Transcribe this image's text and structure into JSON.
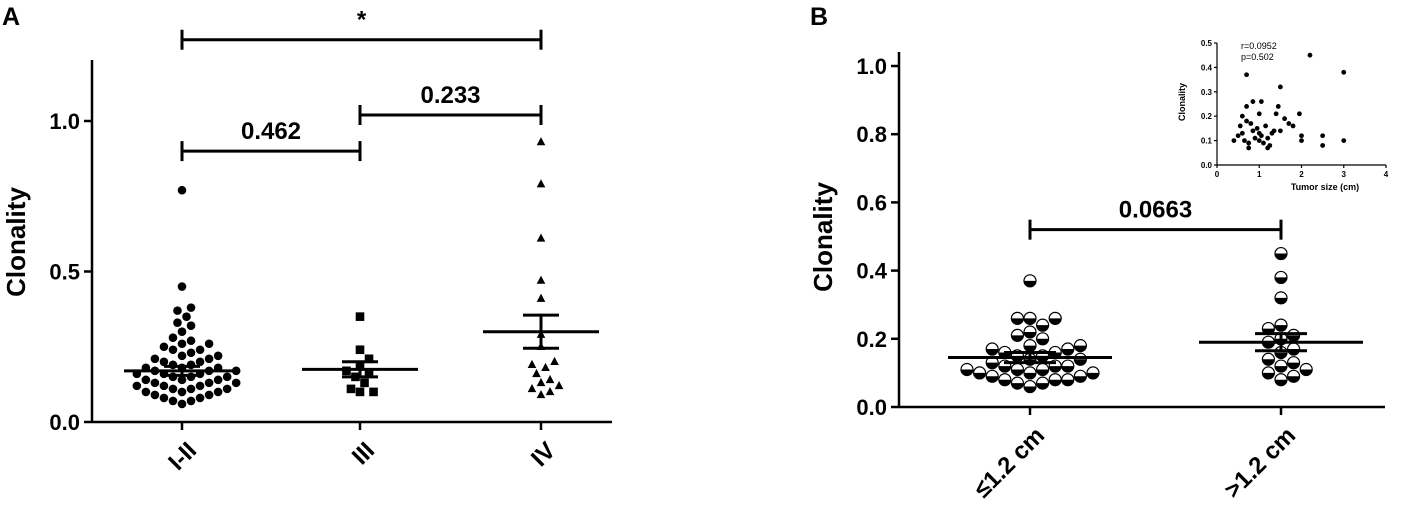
{
  "chart_data": [
    {
      "panel_label": "A",
      "type": "scatter",
      "subtype": "dot-plot with mean ± SEM",
      "ylabel": "Clonality",
      "ylim": [
        0,
        1.2
      ],
      "yticks": [
        0.0,
        0.5,
        1.0
      ],
      "ytick_labels": [
        "0.0",
        "0.5",
        "1.0"
      ],
      "categories": [
        "I-II",
        "III",
        "IV"
      ],
      "marker_shapes": [
        "circle",
        "square",
        "triangle"
      ],
      "series": [
        {
          "category": "I-II",
          "mean": 0.17,
          "sem": 0.015,
          "values": [
            0.77,
            0.45,
            0.38,
            0.37,
            0.35,
            0.33,
            0.32,
            0.3,
            0.28,
            0.27,
            0.26,
            0.26,
            0.25,
            0.24,
            0.24,
            0.23,
            0.22,
            0.22,
            0.21,
            0.21,
            0.2,
            0.2,
            0.19,
            0.19,
            0.18,
            0.18,
            0.18,
            0.17,
            0.17,
            0.17,
            0.16,
            0.16,
            0.16,
            0.15,
            0.15,
            0.15,
            0.14,
            0.14,
            0.14,
            0.13,
            0.13,
            0.13,
            0.12,
            0.12,
            0.12,
            0.11,
            0.11,
            0.11,
            0.1,
            0.1,
            0.1,
            0.09,
            0.09,
            0.08,
            0.08,
            0.07,
            0.07,
            0.06
          ]
        },
        {
          "category": "III",
          "mean": 0.175,
          "sem": 0.025,
          "values": [
            0.35,
            0.24,
            0.21,
            0.19,
            0.17,
            0.16,
            0.15,
            0.13,
            0.11,
            0.1,
            0.1
          ]
        },
        {
          "category": "IV",
          "mean": 0.3,
          "sem": 0.055,
          "values": [
            0.93,
            0.79,
            0.61,
            0.47,
            0.41,
            0.29,
            0.25,
            0.2,
            0.19,
            0.18,
            0.16,
            0.14,
            0.13,
            0.12,
            0.11,
            0.1,
            0.09
          ]
        }
      ],
      "comparisons": [
        {
          "from": "I-II",
          "to": "III",
          "label": "0.462",
          "y": 0.9
        },
        {
          "from": "III",
          "to": "IV",
          "label": "0.233",
          "y": 1.02
        },
        {
          "from": "I-II",
          "to": "IV",
          "label": "*",
          "y": 1.27
        }
      ]
    },
    {
      "panel_label": "B",
      "type": "scatter",
      "subtype": "dot-plot with mean ± SEM",
      "ylabel": "Clonality",
      "ylim": [
        0,
        1.0
      ],
      "yticks": [
        0.0,
        0.2,
        0.4,
        0.6,
        0.8,
        1.0
      ],
      "ytick_labels": [
        "0.0",
        "0.2",
        "0.4",
        "0.6",
        "0.8",
        "1.0"
      ],
      "categories": [
        "≤1.2 cm",
        ">1.2 cm"
      ],
      "marker_shapes": [
        "half-filled circle",
        "half-filled circle"
      ],
      "series": [
        {
          "category": "≤1.2 cm",
          "mean": 0.145,
          "sem": 0.015,
          "values": [
            0.37,
            0.26,
            0.26,
            0.26,
            0.24,
            0.22,
            0.21,
            0.2,
            0.18,
            0.18,
            0.17,
            0.17,
            0.16,
            0.16,
            0.15,
            0.15,
            0.14,
            0.14,
            0.13,
            0.12,
            0.12,
            0.12,
            0.11,
            0.11,
            0.11,
            0.1,
            0.1,
            0.1,
            0.09,
            0.09,
            0.08,
            0.08,
            0.08,
            0.07,
            0.07,
            0.06
          ]
        },
        {
          "category": ">1.2 cm",
          "mean": 0.19,
          "sem": 0.025,
          "values": [
            0.45,
            0.38,
            0.32,
            0.24,
            0.23,
            0.21,
            0.2,
            0.19,
            0.17,
            0.16,
            0.14,
            0.13,
            0.12,
            0.11,
            0.1,
            0.09,
            0.08
          ]
        }
      ],
      "comparisons": [
        {
          "from": "≤1.2 cm",
          "to": ">1.2 cm",
          "label": "0.0663",
          "y": 0.52
        }
      ],
      "inset": {
        "type": "scatter",
        "xlabel": "Tumor size (cm)",
        "ylabel": "Clonality",
        "xlim": [
          0,
          4
        ],
        "ylim": [
          0,
          0.5
        ],
        "xticks": [
          0,
          1,
          2,
          3,
          4
        ],
        "yticks": [
          0.0,
          0.1,
          0.2,
          0.3,
          0.4,
          0.5
        ],
        "ytick_labels": [
          "0.0",
          "0.1",
          "0.2",
          "0.3",
          "0.4",
          "0.5"
        ],
        "annotations": [
          "r=0.0952",
          "p=0.502"
        ],
        "points": [
          [
            0.4,
            0.1
          ],
          [
            0.5,
            0.12
          ],
          [
            0.55,
            0.16
          ],
          [
            0.6,
            0.13
          ],
          [
            0.6,
            0.2
          ],
          [
            0.65,
            0.1
          ],
          [
            0.7,
            0.37
          ],
          [
            0.7,
            0.24
          ],
          [
            0.7,
            0.18
          ],
          [
            0.75,
            0.09
          ],
          [
            0.75,
            0.07
          ],
          [
            0.8,
            0.17
          ],
          [
            0.85,
            0.14
          ],
          [
            0.85,
            0.26
          ],
          [
            0.9,
            0.11
          ],
          [
            0.95,
            0.15
          ],
          [
            1.0,
            0.1
          ],
          [
            1.0,
            0.13
          ],
          [
            1.0,
            0.21
          ],
          [
            1.05,
            0.26
          ],
          [
            1.05,
            0.12
          ],
          [
            1.1,
            0.09
          ],
          [
            1.15,
            0.16
          ],
          [
            1.2,
            0.07
          ],
          [
            1.2,
            0.11
          ],
          [
            1.25,
            0.08
          ],
          [
            1.3,
            0.13
          ],
          [
            1.35,
            0.14
          ],
          [
            1.4,
            0.21
          ],
          [
            1.45,
            0.24
          ],
          [
            1.5,
            0.32
          ],
          [
            1.5,
            0.14
          ],
          [
            1.6,
            0.19
          ],
          [
            1.7,
            0.17
          ],
          [
            1.8,
            0.16
          ],
          [
            1.95,
            0.21
          ],
          [
            2.0,
            0.12
          ],
          [
            2.0,
            0.1
          ],
          [
            2.2,
            0.45
          ],
          [
            2.5,
            0.12
          ],
          [
            2.5,
            0.08
          ],
          [
            3.0,
            0.38
          ],
          [
            3.0,
            0.1
          ]
        ]
      }
    }
  ]
}
